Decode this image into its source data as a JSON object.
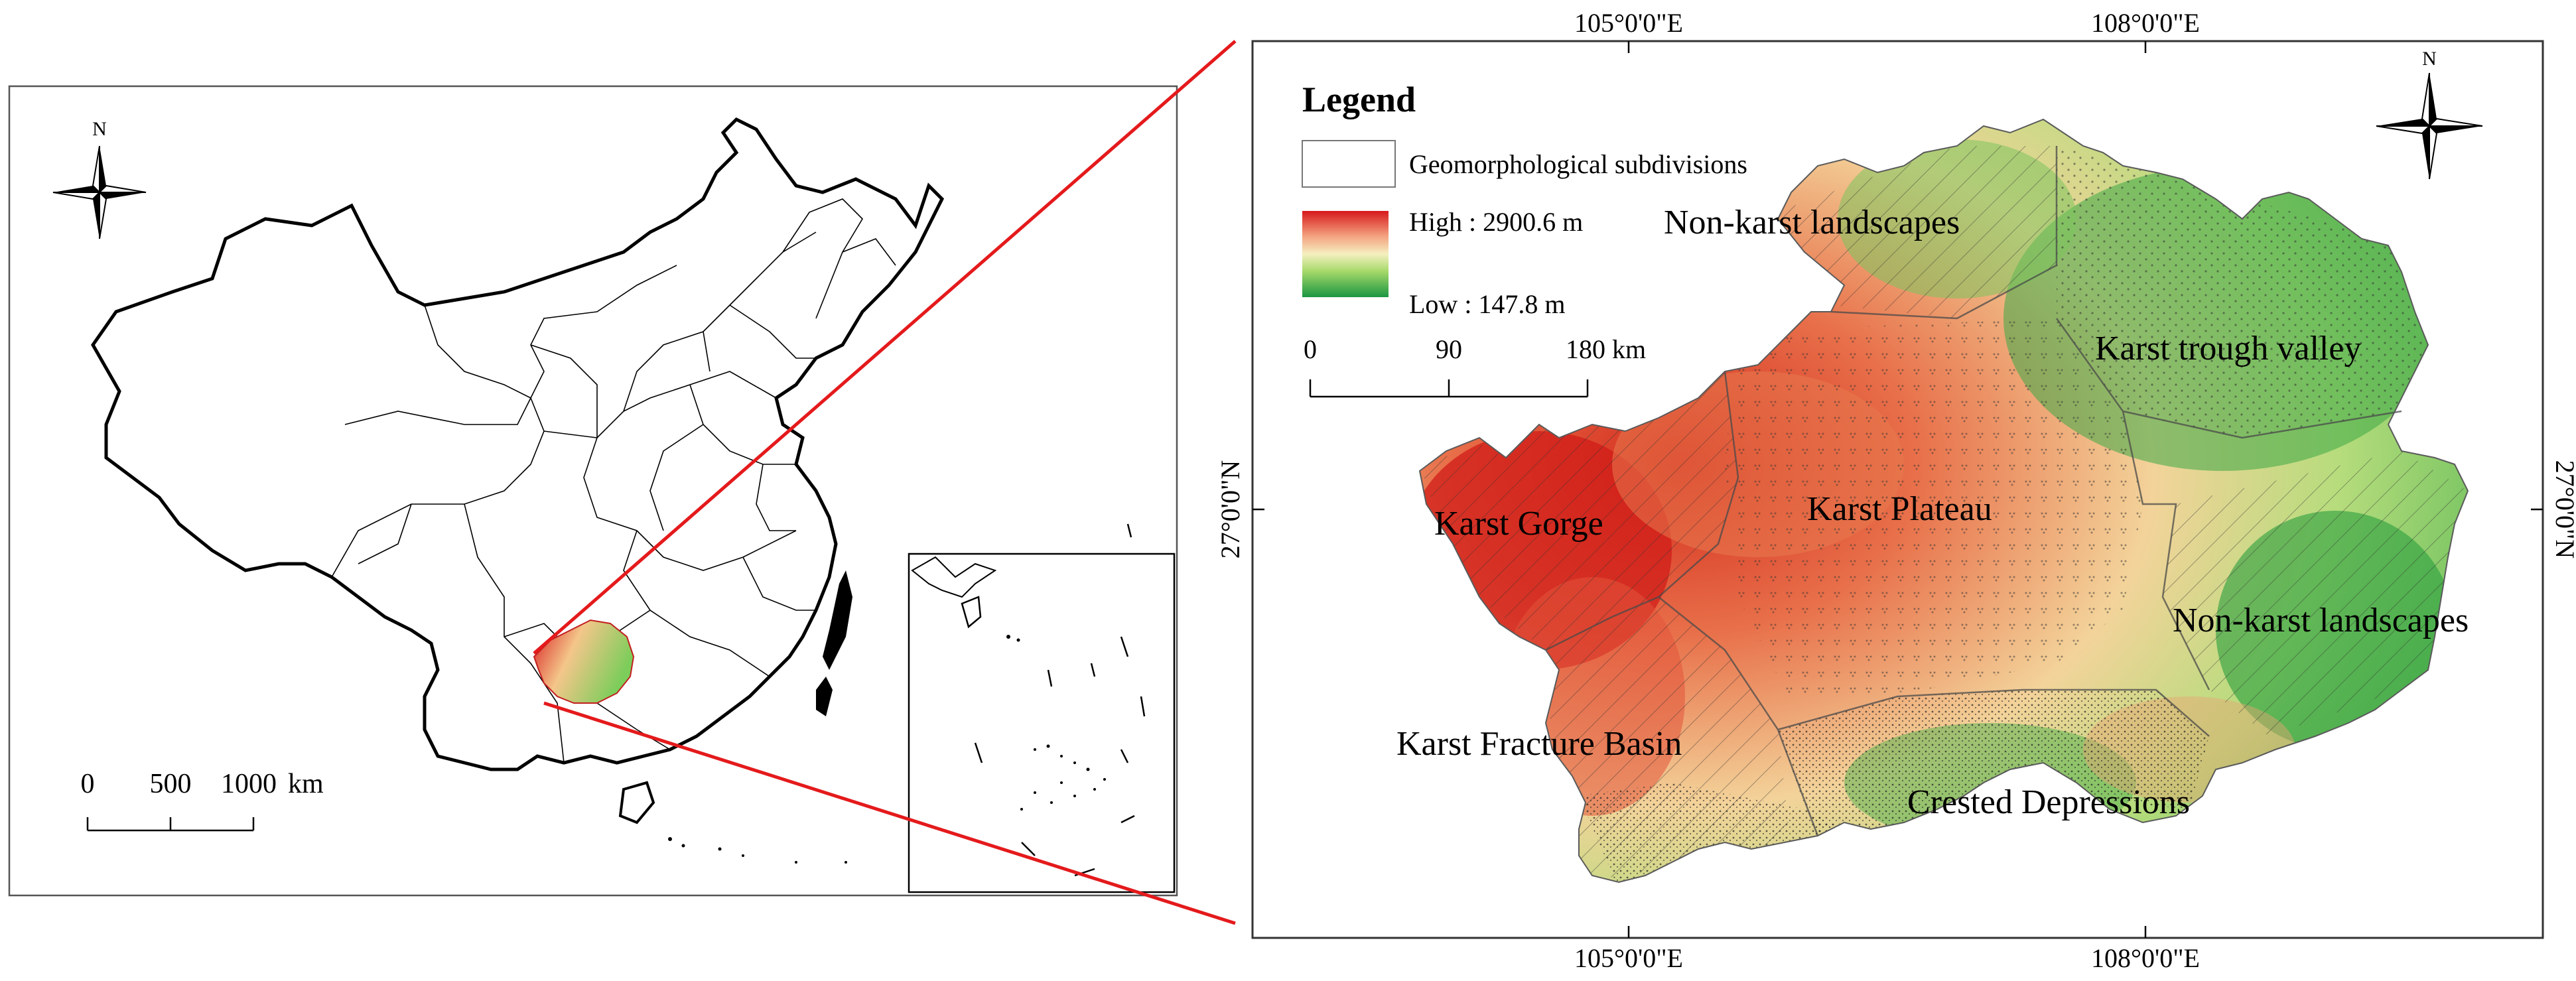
{
  "left_panel": {
    "north_label": "N",
    "scale": {
      "labels": [
        "0",
        "500",
        "1000"
      ],
      "unit": "km"
    }
  },
  "right_panel": {
    "coords": {
      "top": [
        "105°0'0\"E",
        "108°0'0\"E"
      ],
      "bottom": [
        "105°0'0\"E",
        "108°0'0\"E"
      ],
      "left": "27°0'0\"N",
      "right": "27°0'0\"N"
    },
    "north_label": "N",
    "legend": {
      "title": "Legend",
      "subdivisions_label": "Geomorphological subdivisions",
      "high_label": "High : 2900.6 m",
      "low_label": "Low : 147.8 m",
      "scale_labels": [
        "0",
        "90",
        "180 km"
      ]
    },
    "regions": {
      "nonkarst_nw": "Non-karst landscapes",
      "trough": "Karst trough valley",
      "gorge": "Karst Gorge",
      "plateau": "Karst Plateau",
      "nonkarst_e": "Non-karst landscapes",
      "fracture": "Karst Fracture Basin",
      "crested": "Crested Depressions"
    },
    "colors": {
      "high": "#d7191c",
      "mid_high": "#f4a582",
      "mid": "#f5f0c0",
      "mid_low": "#a6d96a",
      "low": "#1a9641"
    }
  }
}
